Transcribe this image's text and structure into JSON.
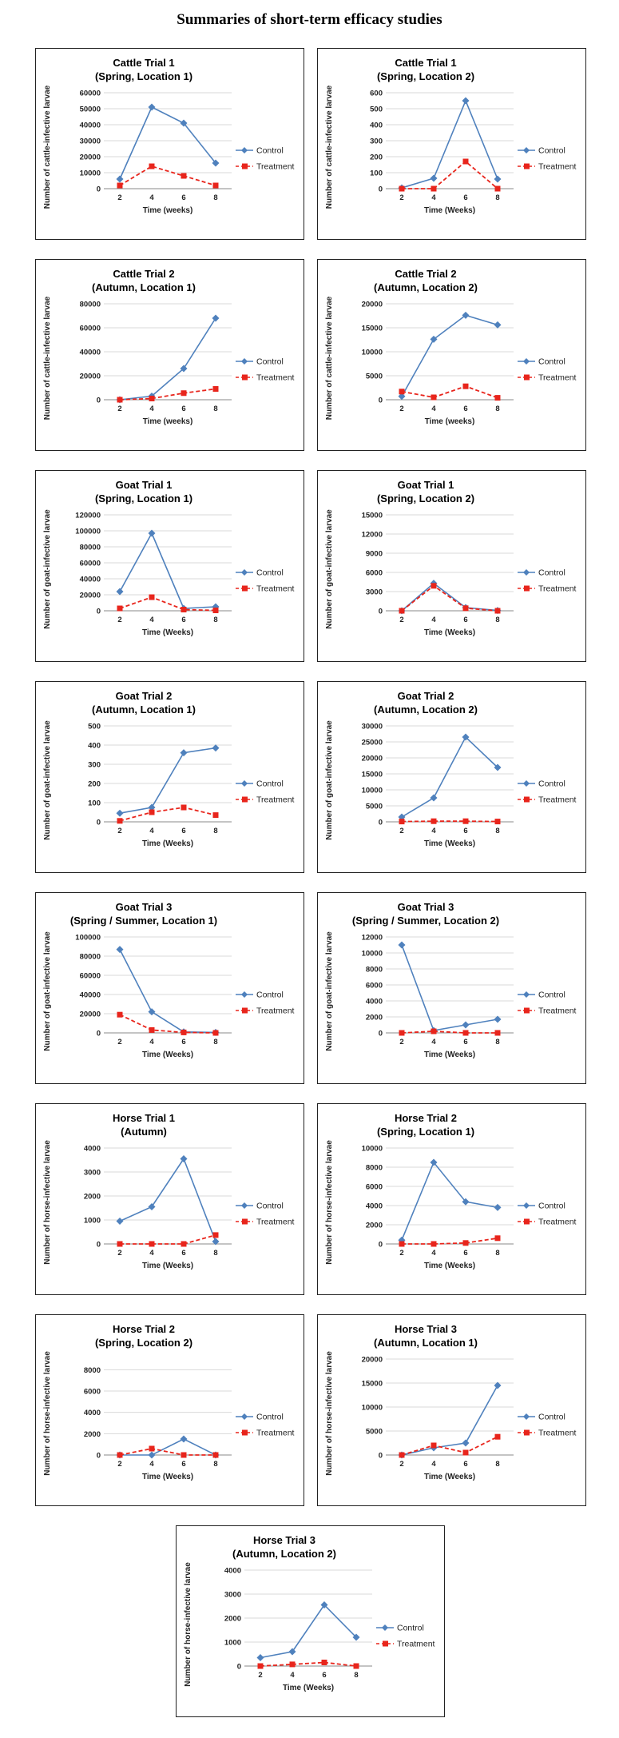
{
  "page_title": "Summaries of short-term efficacy studies",
  "colors": {
    "control": "#4F81BD",
    "treatment": "#E8251C",
    "grid": "#D9D9D9"
  },
  "chart_data": [
    {
      "type": "line",
      "title": [
        "Cattle Trial 1",
        "(Spring, Location 1)"
      ],
      "xlabel": "Time (weeks)",
      "ylabel": "Number of cattle-infective larvae",
      "categories": [
        "2",
        "4",
        "6",
        "8"
      ],
      "ylim": [
        0,
        60000
      ],
      "yticks": [
        0,
        10000,
        20000,
        30000,
        40000,
        50000,
        60000
      ],
      "series": [
        {
          "name": "Control",
          "values": [
            6000,
            51000,
            41000,
            16000
          ]
        },
        {
          "name": "Treatment",
          "values": [
            2000,
            14000,
            8000,
            2000
          ]
        }
      ]
    },
    {
      "type": "line",
      "title": [
        "Cattle Trial 1",
        "(Spring, Location 2)"
      ],
      "xlabel": "Time (Weeks)",
      "ylabel": "Number of cattle-infective larvae",
      "categories": [
        "2",
        "4",
        "6",
        "8"
      ],
      "ylim": [
        0,
        600
      ],
      "yticks": [
        0,
        100,
        200,
        300,
        400,
        500,
        600
      ],
      "series": [
        {
          "name": "Control",
          "values": [
            5,
            65,
            550,
            60
          ]
        },
        {
          "name": "Treatment",
          "values": [
            0,
            0,
            170,
            0
          ]
        }
      ]
    },
    {
      "type": "line",
      "title": [
        "Cattle Trial 2",
        "(Autumn, Location 1)"
      ],
      "xlabel": "Time (weeks)",
      "ylabel": "Number of cattle-infective larvae",
      "categories": [
        "2",
        "4",
        "6",
        "8"
      ],
      "ylim": [
        0,
        80000
      ],
      "yticks": [
        0,
        20000,
        40000,
        60000,
        80000
      ],
      "series": [
        {
          "name": "Control",
          "values": [
            0,
            3000,
            26000,
            68000
          ]
        },
        {
          "name": "Treatment",
          "values": [
            0,
            1000,
            5500,
            9000
          ]
        }
      ]
    },
    {
      "type": "line",
      "title": [
        "Cattle Trial 2",
        "(Autumn, Location 2)"
      ],
      "xlabel": "Time (weeks)",
      "ylabel": "Number of cattle-infective larvae",
      "categories": [
        "2",
        "4",
        "6",
        "8"
      ],
      "ylim": [
        0,
        20000
      ],
      "yticks": [
        0,
        5000,
        10000,
        15000,
        20000
      ],
      "series": [
        {
          "name": "Control",
          "values": [
            700,
            12600,
            17600,
            15600
          ]
        },
        {
          "name": "Treatment",
          "values": [
            1700,
            500,
            2800,
            400
          ]
        }
      ]
    },
    {
      "type": "line",
      "title": [
        "Goat Trial 1",
        "(Spring, Location 1)"
      ],
      "xlabel": "Time (Weeks)",
      "ylabel": "Number of goat-infective larvae",
      "categories": [
        "2",
        "4",
        "6",
        "8"
      ],
      "ylim": [
        0,
        120000
      ],
      "yticks": [
        0,
        20000,
        40000,
        60000,
        80000,
        100000,
        120000
      ],
      "series": [
        {
          "name": "Control",
          "values": [
            24000,
            97000,
            3000,
            5000
          ]
        },
        {
          "name": "Treatment",
          "values": [
            3000,
            17000,
            1500,
            500
          ]
        }
      ]
    },
    {
      "type": "line",
      "title": [
        "Goat Trial 1",
        "(Spring, Location 2)"
      ],
      "xlabel": "Time (Weeks)",
      "ylabel": "Number of goat-infective larvae",
      "categories": [
        "2",
        "4",
        "6",
        "8"
      ],
      "ylim": [
        0,
        15000
      ],
      "yticks": [
        0,
        3000,
        6000,
        9000,
        12000,
        15000
      ],
      "series": [
        {
          "name": "Control",
          "values": [
            0,
            4300,
            500,
            50
          ]
        },
        {
          "name": "Treatment",
          "values": [
            0,
            3900,
            400,
            0
          ]
        }
      ]
    },
    {
      "type": "line",
      "title": [
        "Goat Trial 2",
        "(Autumn, Location 1)"
      ],
      "xlabel": "Time (Weeks)",
      "ylabel": "Number of goat-infective larvae",
      "categories": [
        "2",
        "4",
        "6",
        "8"
      ],
      "ylim": [
        0,
        500
      ],
      "yticks": [
        0,
        100,
        200,
        300,
        400,
        500
      ],
      "series": [
        {
          "name": "Control",
          "values": [
            45,
            75,
            360,
            385
          ]
        },
        {
          "name": "Treatment",
          "values": [
            5,
            50,
            75,
            35
          ]
        }
      ]
    },
    {
      "type": "line",
      "title": [
        "Goat Trial  2",
        "(Autumn, Location 2)"
      ],
      "xlabel": "Time (Weeks)",
      "ylabel": "Number of goat-infective larvae",
      "categories": [
        "2",
        "4",
        "6",
        "8"
      ],
      "ylim": [
        0,
        30000
      ],
      "yticks": [
        0,
        5000,
        10000,
        15000,
        20000,
        25000,
        30000
      ],
      "series": [
        {
          "name": "Control",
          "values": [
            1500,
            7500,
            26500,
            17000
          ]
        },
        {
          "name": "Treatment",
          "values": [
            100,
            200,
            200,
            100
          ]
        }
      ]
    },
    {
      "type": "line",
      "title": [
        "Goat Trial 3",
        "(Spring / Summer, Location 1)"
      ],
      "xlabel": "Time (Weeks)",
      "ylabel": "Number of goat-infective larvae",
      "categories": [
        "2",
        "4",
        "6",
        "8"
      ],
      "ylim": [
        0,
        100000
      ],
      "yticks": [
        0,
        20000,
        40000,
        60000,
        80000,
        100000
      ],
      "series": [
        {
          "name": "Control",
          "values": [
            87000,
            22000,
            1000,
            500
          ]
        },
        {
          "name": "Treatment",
          "values": [
            19000,
            3000,
            500,
            0
          ]
        }
      ]
    },
    {
      "type": "line",
      "title": [
        "Goat Trial 3",
        "(Spring / Summer, Location 2)"
      ],
      "xlabel": "Time (Weeks)",
      "ylabel": "Number of goat-infective larvae",
      "categories": [
        "2",
        "4",
        "6",
        "8"
      ],
      "ylim": [
        0,
        12000
      ],
      "yticks": [
        0,
        2000,
        4000,
        6000,
        8000,
        10000,
        12000
      ],
      "series": [
        {
          "name": "Control",
          "values": [
            11000,
            300,
            1000,
            1700
          ]
        },
        {
          "name": "Treatment",
          "values": [
            0,
            200,
            0,
            0
          ]
        }
      ]
    },
    {
      "type": "line",
      "title": [
        "Horse Trial 1",
        "(Autumn)"
      ],
      "xlabel": "Time (Weeks)",
      "ylabel": "Number of horse-infective larvae",
      "categories": [
        "2",
        "4",
        "6",
        "8"
      ],
      "ylim": [
        0,
        4000
      ],
      "yticks": [
        0,
        1000,
        2000,
        3000,
        4000
      ],
      "series": [
        {
          "name": "Control",
          "values": [
            950,
            1550,
            3550,
            100
          ]
        },
        {
          "name": "Treatment",
          "values": [
            0,
            0,
            0,
            370
          ]
        }
      ]
    },
    {
      "type": "line",
      "title": [
        "Horse Trial 2",
        "(Spring, Location 1)"
      ],
      "xlabel": "Time (Weeks)",
      "ylabel": "Number of horse-infective larvae",
      "categories": [
        "2",
        "4",
        "6",
        "8"
      ],
      "ylim": [
        0,
        10000
      ],
      "yticks": [
        0,
        2000,
        4000,
        6000,
        8000,
        10000
      ],
      "series": [
        {
          "name": "Control",
          "values": [
            400,
            8500,
            4400,
            3800
          ]
        },
        {
          "name": "Treatment",
          "values": [
            0,
            0,
            100,
            600
          ]
        }
      ]
    },
    {
      "type": "line",
      "title": [
        "Horse Trial 2",
        "(Spring, Location 2)"
      ],
      "xlabel": "Time (Weeks)",
      "ylabel": "Number of horse-infective larvae",
      "categories": [
        "2",
        "4",
        "6",
        "8"
      ],
      "ylim": [
        0,
        9000
      ],
      "yticks": [
        0,
        2000,
        4000,
        6000,
        8000
      ],
      "series": [
        {
          "name": "Control",
          "values": [
            0,
            0,
            1500,
            0
          ]
        },
        {
          "name": "Treatment",
          "values": [
            0,
            600,
            0,
            0
          ]
        }
      ]
    },
    {
      "type": "line",
      "title": [
        "Horse Trial 3",
        "(Autumn, Location 1)"
      ],
      "xlabel": "Time (Weeks)",
      "ylabel": "Number of horse-infective larvae",
      "categories": [
        "2",
        "4",
        "6",
        "8"
      ],
      "ylim": [
        0,
        20000
      ],
      "yticks": [
        0,
        5000,
        10000,
        15000,
        20000
      ],
      "series": [
        {
          "name": "Control",
          "values": [
            0,
            1500,
            2500,
            14500
          ]
        },
        {
          "name": "Treatment",
          "values": [
            0,
            2000,
            500,
            3800
          ]
        }
      ]
    },
    {
      "type": "line",
      "title": [
        "Horse Trial 3",
        "(Autumn, Location 2)"
      ],
      "xlabel": "Time (Weeks)",
      "ylabel": "Number of horse-infective larvae",
      "categories": [
        "2",
        "4",
        "6",
        "8"
      ],
      "ylim": [
        0,
        4000
      ],
      "yticks": [
        0,
        1000,
        2000,
        3000,
        4000
      ],
      "series": [
        {
          "name": "Control",
          "values": [
            350,
            600,
            2550,
            1200
          ]
        },
        {
          "name": "Treatment",
          "values": [
            0,
            70,
            150,
            0
          ]
        }
      ]
    }
  ]
}
